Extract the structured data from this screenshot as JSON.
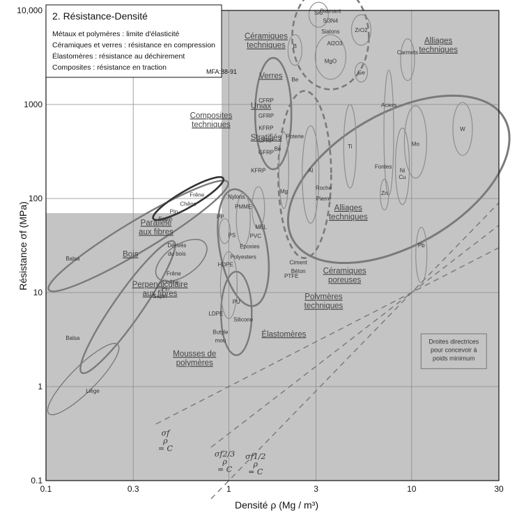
{
  "chart_data": {
    "type": "scatter",
    "title": "2. Résistance-Densité",
    "subtitle_lines": [
      "Métaux et polymères : limite d'élasticité",
      "Céramiques et verres : résistance en compression",
      "Élastomères : résistance au déchirement",
      "Composites : résistance en traction"
    ],
    "reference_tag": "MFA:88-91",
    "xlabel": "Densité ρ  (Mg / m³)",
    "ylabel": "Résistance σf (MPa)",
    "x_scale": "log",
    "y_scale": "log",
    "xlim": [
      0.1,
      30
    ],
    "ylim": [
      0.1,
      10000
    ],
    "x_ticks": [
      0.1,
      0.3,
      1,
      3,
      10,
      30
    ],
    "x_tick_labels": [
      "0.1",
      "0.3",
      "1",
      "3",
      "10",
      "30"
    ],
    "y_ticks": [
      0.1,
      1,
      10,
      100,
      1000,
      10000
    ],
    "y_tick_labels": [
      "0.1",
      "1",
      "10",
      "100",
      "1000",
      "10,000"
    ],
    "grid": true,
    "family_labels": [
      {
        "text": "Céramiques techniques",
        "lines": [
          "Céramiques",
          "techniques"
        ],
        "x": 1.6,
        "y": 5000
      },
      {
        "text": "Verres",
        "lines": [
          "Verres"
        ],
        "x": 1.7,
        "y": 1900
      },
      {
        "text": "Alliages techniques",
        "lines": [
          "Alliages",
          "techniques"
        ],
        "x": 14,
        "y": 4500
      },
      {
        "text": "Composites techniques",
        "lines": [
          "Composites",
          "techniques"
        ],
        "x": 0.8,
        "y": 720
      },
      {
        "text": "Uniax",
        "lines": [
          "Uniax"
        ],
        "x": 1.5,
        "y": 910
      },
      {
        "text": "Stratifiés",
        "lines": [
          "Stratifiés"
        ],
        "x": 1.6,
        "y": 420
      },
      {
        "text": "Alliages techniques",
        "lines": [
          "Alliages",
          "techniques"
        ],
        "x": 4.5,
        "y": 75
      },
      {
        "text": "Parallèle aux fibres",
        "lines": [
          "Parallèle",
          "aux fibres"
        ],
        "x": 0.4,
        "y": 52
      },
      {
        "text": "Bois",
        "lines": [
          "Bois"
        ],
        "x": 0.29,
        "y": 24
      },
      {
        "text": "Perpendiculaire aux fibres",
        "lines": [
          "Perpendiculaire",
          "aux fibres"
        ],
        "x": 0.42,
        "y": 11.5
      },
      {
        "text": "Céramiques poreuses",
        "lines": [
          "Céramiques",
          "poreuses"
        ],
        "x": 4.3,
        "y": 16
      },
      {
        "text": "Polymères techniques",
        "lines": [
          "Polymères",
          "techniques"
        ],
        "x": 3.3,
        "y": 8.5
      },
      {
        "text": "Élastomères",
        "lines": [
          "Élastomères"
        ],
        "x": 2.0,
        "y": 3.4
      },
      {
        "text": "Mousses de polymères",
        "lines": [
          "Mousses de",
          "polymères"
        ],
        "x": 0.65,
        "y": 2.1
      }
    ],
    "materials": [
      {
        "name": "SiC",
        "x": 3.1,
        "y": 9500
      },
      {
        "name": "Diamant",
        "x": 3.6,
        "y": 9900
      },
      {
        "name": "Si3N4",
        "x": 3.6,
        "y": 7800
      },
      {
        "name": "Sialons",
        "x": 3.6,
        "y": 6000
      },
      {
        "name": "Al2O3",
        "x": 3.8,
        "y": 4500
      },
      {
        "name": "ZrO2",
        "x": 5.3,
        "y": 6200
      },
      {
        "name": "B",
        "x": 2.3,
        "y": 4200
      },
      {
        "name": "Be",
        "x": 2.3,
        "y": 1850
      },
      {
        "name": "MgO",
        "x": 3.6,
        "y": 2900
      },
      {
        "name": "Ge",
        "x": 5.3,
        "y": 2200
      },
      {
        "name": "Carmets",
        "x": 9.5,
        "y": 3600
      },
      {
        "name": "CFRP",
        "x": 1.6,
        "y": 1110
      },
      {
        "name": "GFRP",
        "x": 1.6,
        "y": 760
      },
      {
        "name": "KFRP",
        "x": 1.6,
        "y": 565
      },
      {
        "name": "CFRP",
        "x": 1.6,
        "y": 415
      },
      {
        "name": "Be",
        "x": 1.85,
        "y": 340
      },
      {
        "name": "GFRP",
        "x": 1.6,
        "y": 310
      },
      {
        "name": "KFRP",
        "x": 1.45,
        "y": 200
      },
      {
        "name": "Poterie",
        "x": 2.3,
        "y": 460
      },
      {
        "name": "Mg",
        "x": 2.0,
        "y": 120
      },
      {
        "name": "Ti",
        "x": 4.6,
        "y": 360
      },
      {
        "name": "Al",
        "x": 2.8,
        "y": 200
      },
      {
        "name": "Roche",
        "x": 3.3,
        "y": 130
      },
      {
        "name": "Pierre",
        "x": 3.3,
        "y": 100
      },
      {
        "name": "Aciers",
        "x": 7.5,
        "y": 990
      },
      {
        "name": "W",
        "x": 19,
        "y": 550
      },
      {
        "name": "Mo",
        "x": 10.5,
        "y": 380
      },
      {
        "name": "Fontes",
        "x": 7.0,
        "y": 220
      },
      {
        "name": "Ni",
        "x": 8.9,
        "y": 200
      },
      {
        "name": "Cu",
        "x": 8.9,
        "y": 170
      },
      {
        "name": "Zn",
        "x": 7.1,
        "y": 115
      },
      {
        "name": "Pb",
        "x": 11.3,
        "y": 32
      },
      {
        "name": "Frêne",
        "x": 0.67,
        "y": 110
      },
      {
        "name": "Chêne",
        "x": 0.6,
        "y": 88
      },
      {
        "name": "Pin",
        "x": 0.5,
        "y": 73
      },
      {
        "name": "Sapin",
        "x": 0.45,
        "y": 61
      },
      {
        "name": "Balsa",
        "x": 0.14,
        "y": 23
      },
      {
        "name": "Dérivés",
        "x": 0.52,
        "y": 32
      },
      {
        "name": "du bois",
        "x": 0.52,
        "y": 26
      },
      {
        "name": "Frêne",
        "x": 0.5,
        "y": 16
      },
      {
        "name": "Chêne",
        "x": 0.48,
        "y": 13
      },
      {
        "name": "Pin",
        "x": 0.45,
        "y": 11
      },
      {
        "name": "Sapin",
        "x": 0.42,
        "y": 9.2
      },
      {
        "name": "Balsa",
        "x": 0.14,
        "y": 3.3
      },
      {
        "name": "Liège",
        "x": 0.18,
        "y": 0.9
      },
      {
        "name": "Nylons",
        "x": 1.1,
        "y": 105
      },
      {
        "name": "PMME",
        "x": 1.2,
        "y": 82
      },
      {
        "name": "PP",
        "x": 0.9,
        "y": 64
      },
      {
        "name": "MEL",
        "x": 1.5,
        "y": 50
      },
      {
        "name": "PS",
        "x": 1.04,
        "y": 41
      },
      {
        "name": "PVC",
        "x": 1.4,
        "y": 40
      },
      {
        "name": "Epoxies",
        "x": 1.3,
        "y": 31
      },
      {
        "name": "Polyesters",
        "x": 1.2,
        "y": 24
      },
      {
        "name": "HDPE",
        "x": 0.96,
        "y": 20
      },
      {
        "name": "Ciment",
        "x": 2.4,
        "y": 21
      },
      {
        "name": "Béton",
        "x": 2.4,
        "y": 17
      },
      {
        "name": "PTFE",
        "x": 2.2,
        "y": 15
      },
      {
        "name": "PU",
        "x": 1.1,
        "y": 8
      },
      {
        "name": "Silicone",
        "x": 1.2,
        "y": 5.2
      },
      {
        "name": "LDPE",
        "x": 0.85,
        "y": 6
      },
      {
        "name": "Butyle",
        "x": 0.9,
        "y": 3.8
      },
      {
        "name": "mou",
        "x": 0.9,
        "y": 3.1
      }
    ],
    "guide_lines": [
      {
        "label": "σ/ρ = C",
        "label_lines": [
          "σf",
          "ρ",
          "= C"
        ],
        "exponent": 1
      },
      {
        "label": "σ^(2/3)/ρ = C",
        "label_lines": [
          "σf2/3",
          "ρ",
          "= C"
        ],
        "exponent": 0.6667
      },
      {
        "label": "σ^(1/2)/ρ = C",
        "label_lines": [
          "σf1/2",
          "ρ",
          "= C"
        ],
        "exponent": 0.5
      }
    ],
    "annotation": {
      "lines": [
        "Droites directrices",
        "pour concevoir à",
        "poids minimum"
      ],
      "x": 17,
      "y": 2.5
    }
  }
}
